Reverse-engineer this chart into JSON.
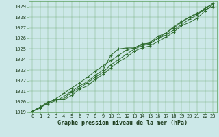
{
  "title": "Graphe pression niveau de la mer (hPa)",
  "xlabel": "Graphe pression niveau de la mer (hPa)",
  "ylim": [
    1019.0,
    1029.5
  ],
  "xlim": [
    -0.5,
    23.5
  ],
  "yticks": [
    1019,
    1020,
    1021,
    1022,
    1023,
    1024,
    1025,
    1026,
    1027,
    1028,
    1029
  ],
  "xticks": [
    0,
    1,
    2,
    3,
    4,
    5,
    6,
    7,
    8,
    9,
    10,
    11,
    12,
    13,
    14,
    15,
    16,
    17,
    18,
    19,
    20,
    21,
    22,
    23
  ],
  "bg_color": "#cce8e8",
  "grid_color": "#5a9e5a",
  "line_color": "#2d6b2d",
  "marker_color": "#2d6b2d",
  "series": [
    [
      1019.1,
      1019.5,
      1019.8,
      1020.1,
      1020.5,
      1021.0,
      1021.5,
      1021.9,
      1022.5,
      1023.0,
      1024.4,
      1025.0,
      1025.1,
      1025.1,
      1025.5,
      1025.5,
      1026.0,
      1026.3,
      1026.8,
      1027.3,
      1027.8,
      1028.2,
      1028.9,
      1029.2
    ],
    [
      1019.1,
      1019.5,
      1020.0,
      1020.2,
      1020.2,
      1020.6,
      1021.2,
      1021.5,
      1022.1,
      1022.6,
      1023.2,
      1023.8,
      1024.2,
      1024.8,
      1025.1,
      1025.3,
      1025.7,
      1026.1,
      1026.6,
      1027.2,
      1027.5,
      1027.9,
      1028.6,
      1029.2
    ],
    [
      1019.1,
      1019.4,
      1019.9,
      1020.2,
      1020.3,
      1020.9,
      1021.3,
      1021.8,
      1022.3,
      1022.8,
      1023.5,
      1024.0,
      1024.5,
      1025.0,
      1025.3,
      1025.5,
      1026.0,
      1026.5,
      1027.0,
      1027.5,
      1028.0,
      1028.3,
      1028.7,
      1029.0
    ],
    [
      1019.1,
      1019.5,
      1019.9,
      1020.3,
      1020.8,
      1021.3,
      1021.8,
      1022.3,
      1022.9,
      1023.4,
      1023.9,
      1024.4,
      1024.9,
      1025.1,
      1025.4,
      1025.6,
      1026.2,
      1026.5,
      1027.1,
      1027.6,
      1028.0,
      1028.4,
      1028.8,
      1029.3
    ]
  ],
  "xlabel_fontsize": 6.0,
  "tick_fontsize": 5.0,
  "linewidth": 0.7,
  "markersize": 2.2
}
